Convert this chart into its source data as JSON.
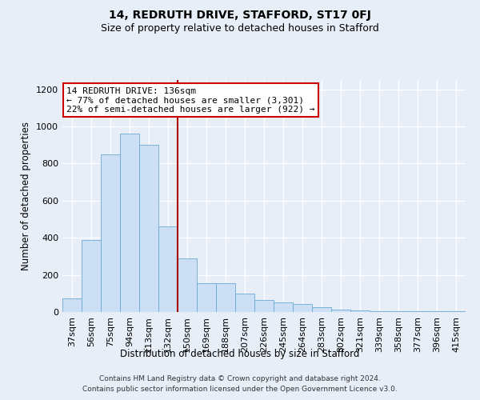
{
  "title": "14, REDRUTH DRIVE, STAFFORD, ST17 0FJ",
  "subtitle": "Size of property relative to detached houses in Stafford",
  "xlabel": "Distribution of detached houses by size in Stafford",
  "ylabel": "Number of detached properties",
  "categories": [
    "37sqm",
    "56sqm",
    "75sqm",
    "94sqm",
    "113sqm",
    "132sqm",
    "150sqm",
    "169sqm",
    "188sqm",
    "207sqm",
    "226sqm",
    "245sqm",
    "264sqm",
    "283sqm",
    "302sqm",
    "321sqm",
    "339sqm",
    "358sqm",
    "377sqm",
    "396sqm",
    "415sqm"
  ],
  "values": [
    75,
    390,
    850,
    960,
    900,
    460,
    290,
    155,
    155,
    100,
    65,
    50,
    45,
    25,
    15,
    10,
    5,
    5,
    5,
    5,
    5
  ],
  "bar_color": "#ccdff5",
  "bar_edge_color": "#6aaad4",
  "vline_x_index": 5,
  "vline_color": "#aa0000",
  "annotation_text": "14 REDRUTH DRIVE: 136sqm\n← 77% of detached houses are smaller (3,301)\n22% of semi-detached houses are larger (922) →",
  "annotation_box_color": "#ffffff",
  "annotation_box_edge_color": "#cc0000",
  "ylim": [
    0,
    1250
  ],
  "yticks": [
    0,
    200,
    400,
    600,
    800,
    1000,
    1200
  ],
  "background_color": "#e8eef8",
  "plot_bg_color": "#e8eef8",
  "footer_line1": "Contains HM Land Registry data © Crown copyright and database right 2024.",
  "footer_line2": "Contains public sector information licensed under the Open Government Licence v3.0.",
  "title_fontsize": 10,
  "subtitle_fontsize": 9,
  "xlabel_fontsize": 8.5,
  "ylabel_fontsize": 8.5,
  "tick_fontsize": 8,
  "annotation_fontsize": 8
}
